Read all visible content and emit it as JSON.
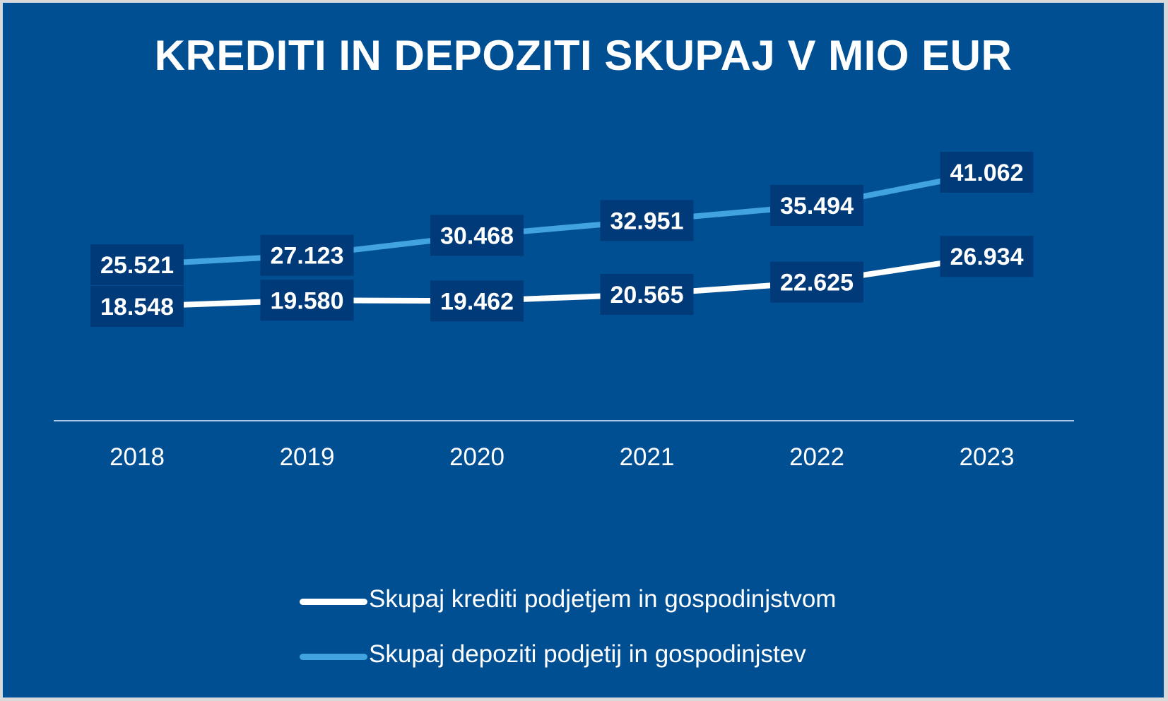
{
  "chart_data": {
    "type": "line",
    "title": "KREDITI IN DEPOZITI SKUPAJ V MIO EUR",
    "categories": [
      "2018",
      "2019",
      "2020",
      "2021",
      "2022",
      "2023"
    ],
    "series": [
      {
        "name": "Skupaj krediti podjetjem in gospodinjstvom",
        "values": [
          18548,
          19580,
          19462,
          20565,
          22625,
          26934
        ],
        "labels": [
          "18.548",
          "19.580",
          "19.462",
          "20.565",
          "22.625",
          "26.934"
        ],
        "color": "#ffffff"
      },
      {
        "name": "Skupaj depoziti podjetij in gospodinjstev",
        "values": [
          25521,
          27123,
          30468,
          32951,
          35494,
          41062
        ],
        "labels": [
          "25.521",
          "27.123",
          "30.468",
          "32.951",
          "35.494",
          "41.062"
        ],
        "color": "#41a3e0"
      }
    ],
    "xlabel": "",
    "ylabel": "",
    "grid": false,
    "legend_position": "bottom",
    "data_labels": true
  },
  "colors": {
    "background": "#004f93",
    "label_box": "#003a78",
    "axis_line": "#a9c9eb"
  }
}
